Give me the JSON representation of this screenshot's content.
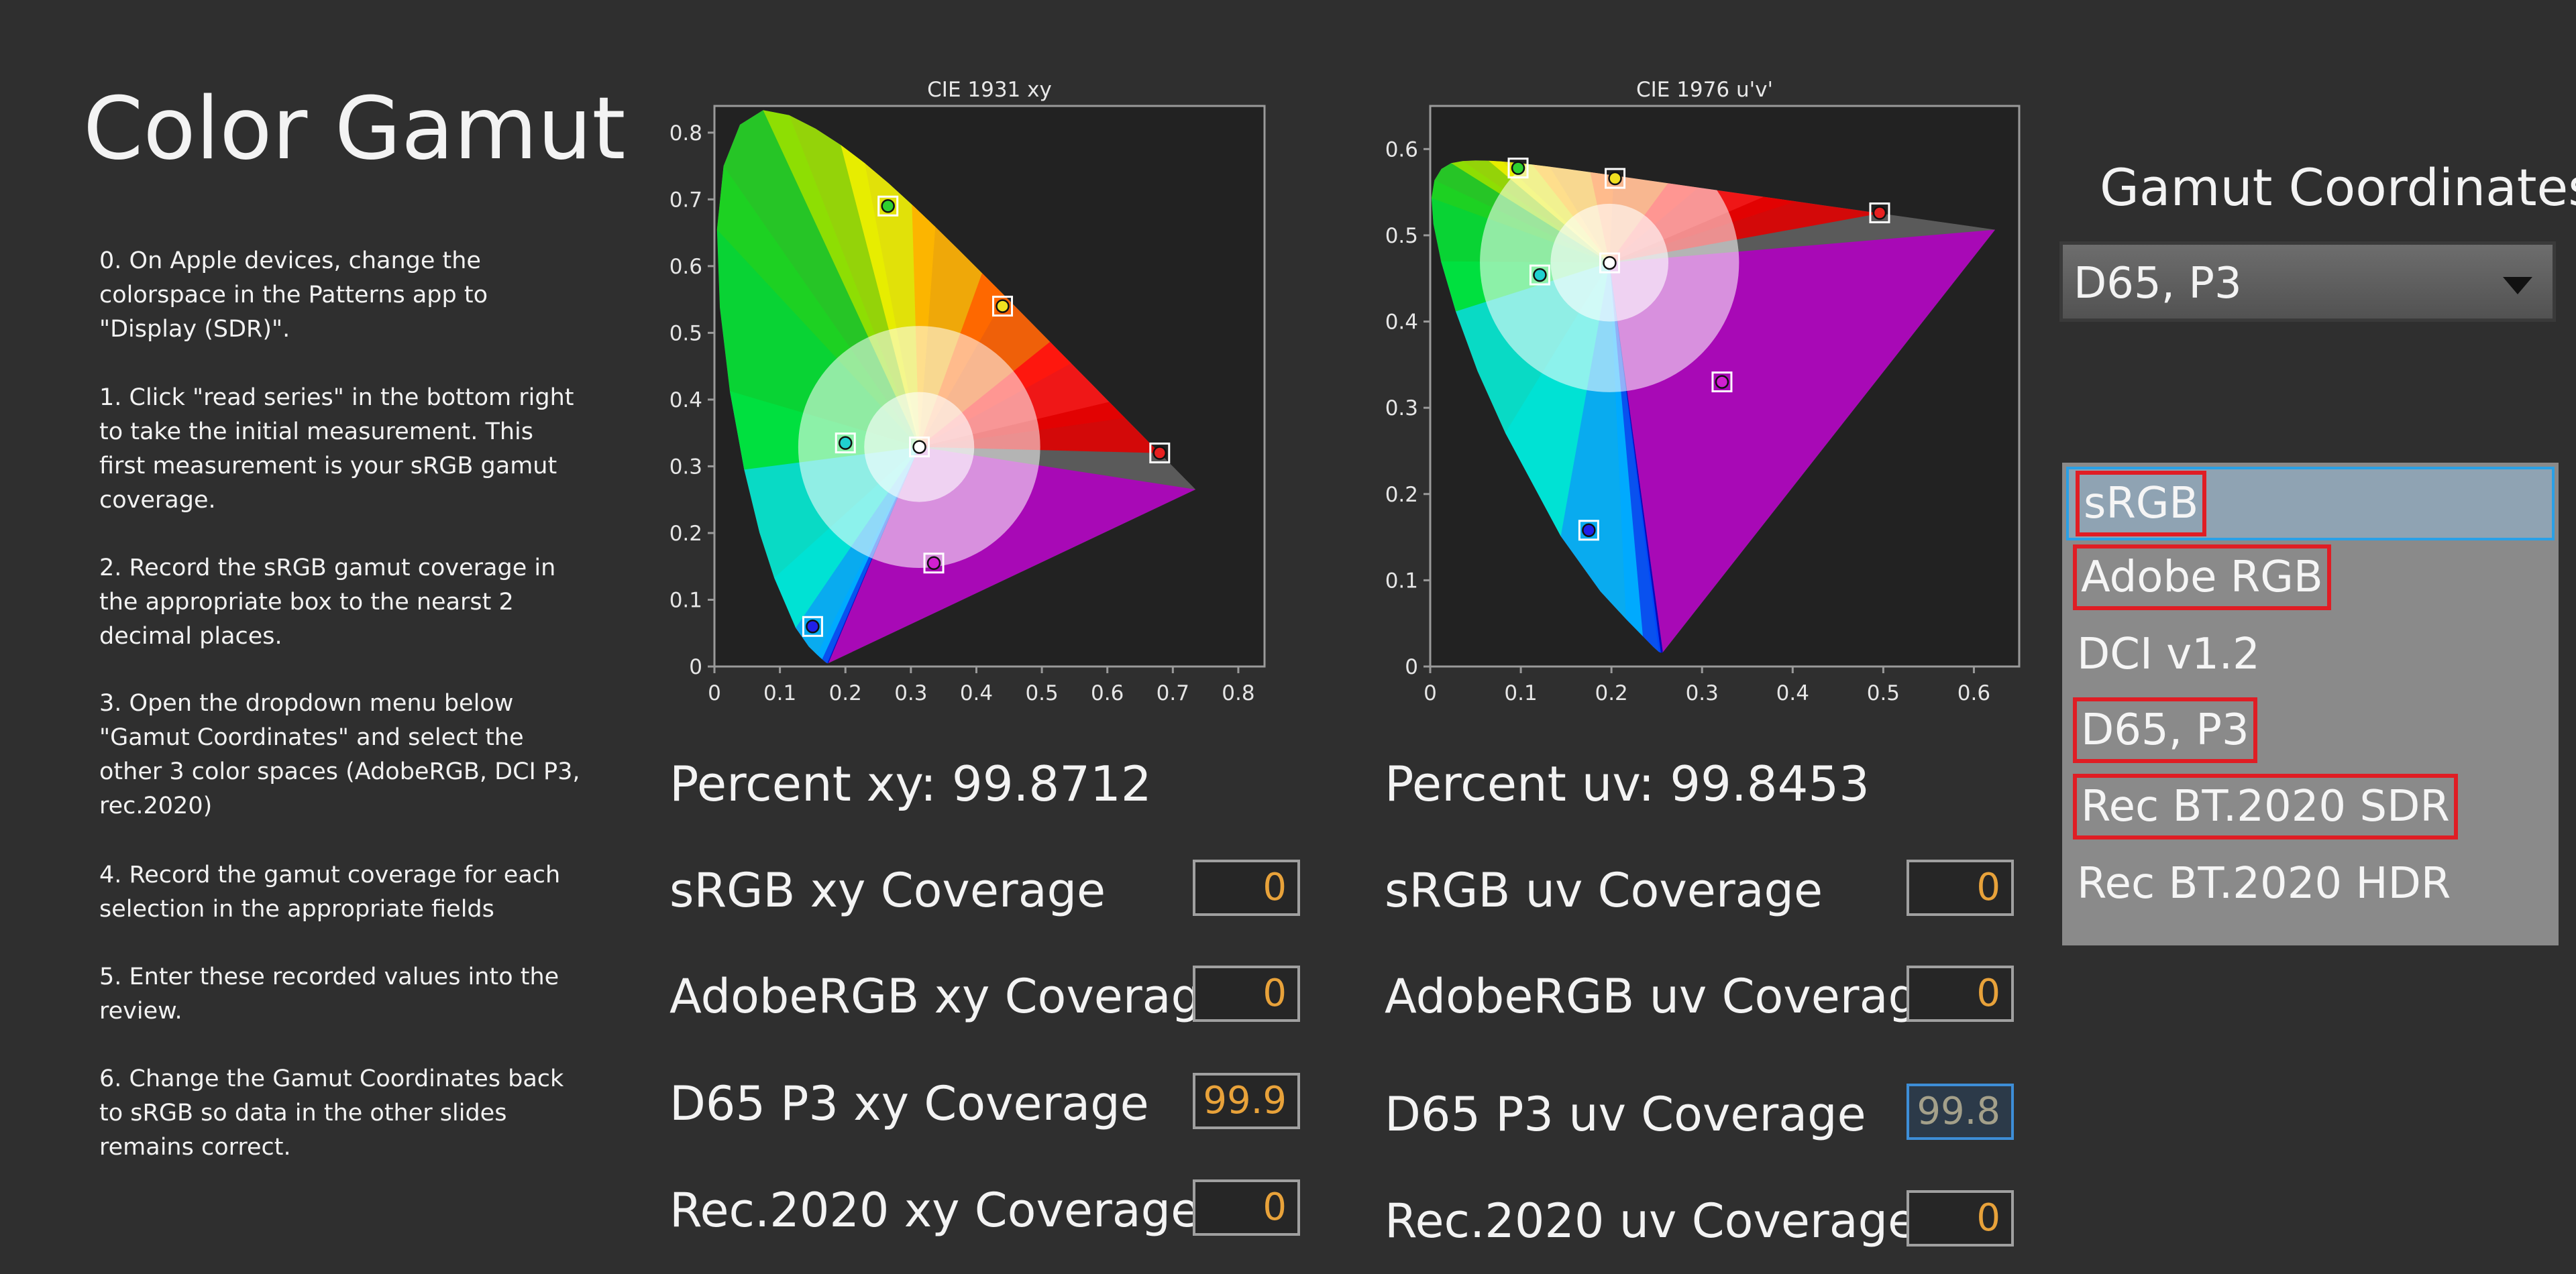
{
  "title": "Color Gamut",
  "instructions": [
    "0. On Apple devices, change the colorspace in the Patterns app to \"Display (SDR)\".",
    "1. Click \"read series\" in the bottom right to take the initial measurement. This first measurement is your sRGB gamut coverage.",
    "2. Record the sRGB gamut coverage in the appropriate box to the nearst 2 decimal places.",
    "3. Open the dropdown menu below \"Gamut Coordinates\" and select the other 3 color spaces (AdobeRGB, DCI P3, rec.2020)",
    "4. Record the gamut coverage for each selection in the appropriate fields",
    "5. Enter these recorded values into the review.",
    "6. Change the Gamut Coordinates back to sRGB so data in the other slides remains correct."
  ],
  "chart_data": [
    {
      "type": "scatter",
      "title": "CIE 1931 xy",
      "xlim": [
        0,
        0.84
      ],
      "ylim": [
        0,
        0.84
      ],
      "xticks": [
        "0",
        "0.1",
        "0.2",
        "0.3",
        "0.4",
        "0.5",
        "0.6",
        "0.7",
        "0.8"
      ],
      "yticks": [
        "0",
        "0.1",
        "0.2",
        "0.3",
        "0.4",
        "0.5",
        "0.6",
        "0.7",
        "0.8"
      ],
      "series": [
        {
          "points": [
            {
              "x": 0.265,
              "y": 0.69,
              "color": "#2fd02f"
            },
            {
              "x": 0.68,
              "y": 0.32,
              "color": "#e82020"
            },
            {
              "x": 0.15,
              "y": 0.06,
              "color": "#2020e8"
            },
            {
              "x": 0.44,
              "y": 0.54,
              "color": "#f0e020"
            },
            {
              "x": 0.2,
              "y": 0.335,
              "color": "#20d0d0"
            },
            {
              "x": 0.335,
              "y": 0.155,
              "color": "#d020d0"
            },
            {
              "x": 0.313,
              "y": 0.329,
              "color": "#ffffff"
            }
          ]
        }
      ]
    },
    {
      "type": "scatter",
      "title": "CIE 1976 u'v'",
      "xlim": [
        0,
        0.65
      ],
      "ylim": [
        0,
        0.65
      ],
      "xticks": [
        "0",
        "0.1",
        "0.2",
        "0.3",
        "0.4",
        "0.5",
        "0.6"
      ],
      "yticks": [
        "0",
        "0.1",
        "0.2",
        "0.3",
        "0.4",
        "0.5",
        "0.6"
      ],
      "series": [
        {
          "points": [
            {
              "x": 0.097,
              "y": 0.578,
              "color": "#2fd02f"
            },
            {
              "x": 0.496,
              "y": 0.526,
              "color": "#e82020"
            },
            {
              "x": 0.175,
              "y": 0.158,
              "color": "#2020e8"
            },
            {
              "x": 0.204,
              "y": 0.566,
              "color": "#f0e020"
            },
            {
              "x": 0.121,
              "y": 0.454,
              "color": "#20d0d0"
            },
            {
              "x": 0.322,
              "y": 0.33,
              "color": "#d020d0"
            },
            {
              "x": 0.198,
              "y": 0.468,
              "color": "#ffffff"
            }
          ]
        }
      ]
    }
  ],
  "percent_xy": "Percent xy: 99.8712",
  "percent_uv": "Percent uv: 99.8453",
  "xy_coverage": [
    {
      "label": "sRGB xy Coverage",
      "value": "0"
    },
    {
      "label": "AdobeRGB xy Coverage",
      "value": "0"
    },
    {
      "label": "D65 P3 xy Coverage",
      "value": "99.9"
    },
    {
      "label": "Rec.2020 xy Coverage",
      "value": "0"
    }
  ],
  "uv_coverage": [
    {
      "label": "sRGB uv Coverage",
      "value": "0"
    },
    {
      "label": "AdobeRGB uv Coverage",
      "value": "0"
    },
    {
      "label": "D65 P3 uv Coverage",
      "value": "99.8"
    },
    {
      "label": "Rec.2020 uv Coverage",
      "value": "0"
    }
  ],
  "gamut_coordinates": {
    "title": "Gamut Coordinates",
    "selected": "D65, P3",
    "options": [
      "sRGB",
      "Adobe RGB",
      "DCI v1.2",
      "D65, P3",
      "Rec BT.2020 SDR",
      "Rec BT.2020 HDR"
    ]
  }
}
